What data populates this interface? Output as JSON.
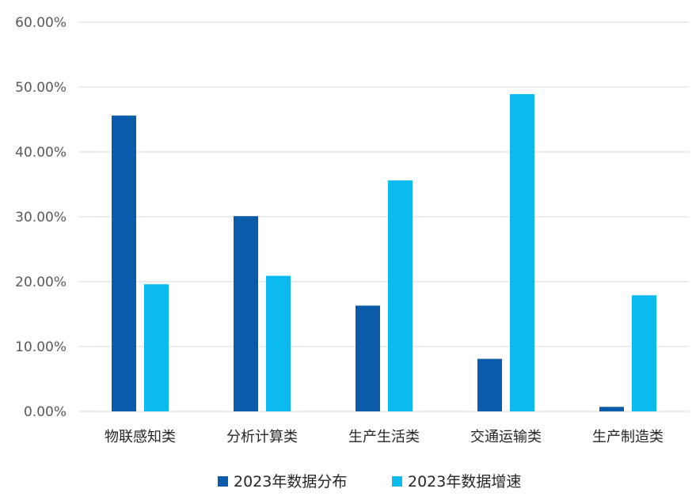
{
  "chart_data": {
    "type": "bar",
    "categories": [
      "物联感知类",
      "分析计算类",
      "生产生活类",
      "交通运输类",
      "生产制造类"
    ],
    "series": [
      {
        "name": "2023年数据分布",
        "values": [
          45.6,
          30.1,
          16.3,
          8.1,
          0.7
        ],
        "color": "#0a5cab"
      },
      {
        "name": "2023年数据增速",
        "values": [
          19.6,
          20.9,
          35.6,
          48.9,
          17.9
        ],
        "color": "#0bbaee"
      }
    ],
    "yticks": [
      "0.00%",
      "10.00%",
      "20.00%",
      "30.00%",
      "40.00%",
      "50.00%",
      "60.00%"
    ],
    "ylim": [
      0,
      60
    ],
    "grid": true,
    "gridColor": "#d9d9d9",
    "legend": "bottom-center"
  }
}
